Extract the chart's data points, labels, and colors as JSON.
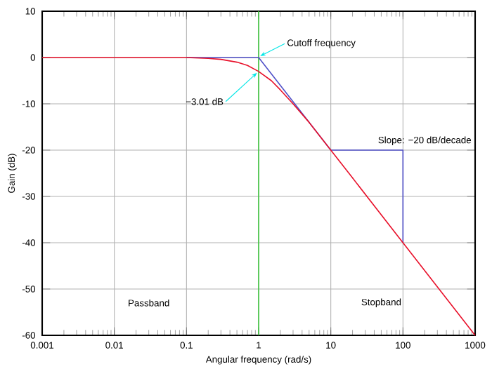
{
  "chart_data": {
    "type": "line",
    "xlabel": "Angular frequency (rad/s)",
    "ylabel": "Gain (dB)",
    "log": "x",
    "xlim": [
      0.001,
      1000
    ],
    "ylim": [
      -60,
      10
    ],
    "xticks": [
      0.001,
      0.01,
      0.1,
      1,
      10,
      100,
      1000
    ],
    "yticks": [
      -60,
      -50,
      -40,
      -30,
      -20,
      -10,
      0,
      10
    ],
    "grid": true,
    "line_style": "solid",
    "marker": "none",
    "series": [
      {
        "color": "#e8102a",
        "x": [
          0.001,
          0.01,
          0.1,
          0.2,
          0.3,
          0.5,
          0.7,
          1,
          1.5,
          2,
          3,
          5,
          10,
          20,
          100,
          1000
        ],
        "values": [
          0,
          0,
          0,
          -0.2,
          -0.4,
          -1,
          -1.7,
          -3.01,
          -5,
          -7,
          -10,
          -14,
          -20,
          -26,
          -40,
          -60
        ]
      },
      {
        "color": "#5050c8",
        "x": [
          0.1,
          1,
          10,
          100,
          100
        ],
        "values": [
          0,
          0,
          -20,
          -20,
          -40
        ]
      }
    ],
    "ref_lines": [
      {
        "axis": "x",
        "value": 1,
        "color": "#40c840"
      }
    ],
    "annotations": [
      {
        "text": "Cutoff frequency",
        "x": 1,
        "y": 0
      },
      {
        "text": "−3.01 dB",
        "x": 1,
        "y": -3.01
      },
      "Slope: −20 dB/decade",
      "Passband",
      "Stopband"
    ]
  }
}
